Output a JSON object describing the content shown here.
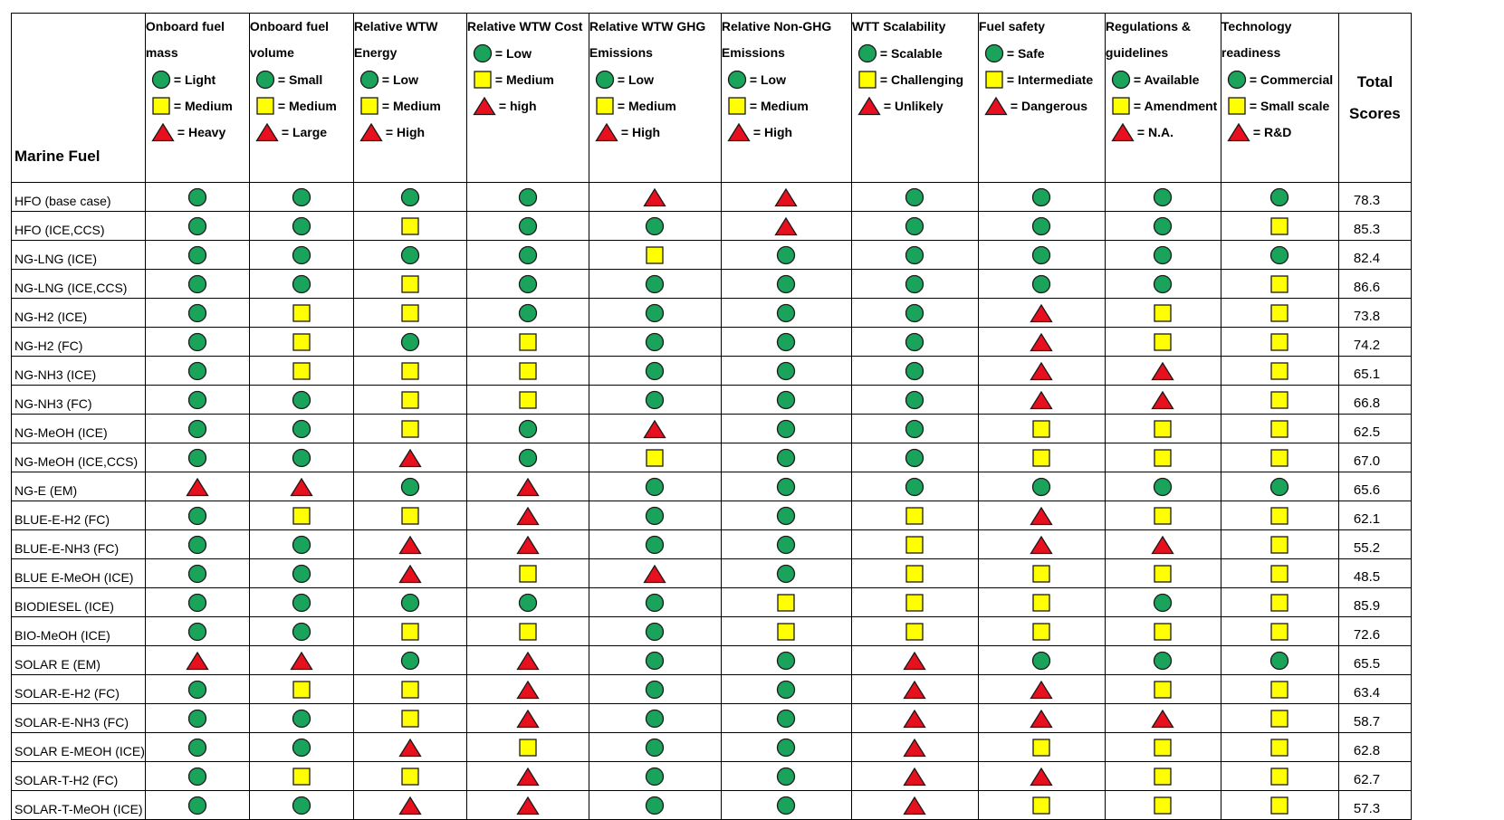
{
  "table": {
    "first_header": "Marine Fuel",
    "total_header": [
      "Total",
      "Scores"
    ],
    "colors": {
      "good": "#1aa35a",
      "medium": "#ffff00",
      "bad": "#e8101e",
      "outline": "#1a1a1a"
    },
    "criteria": [
      {
        "title": [
          "Onboard fuel",
          "mass"
        ],
        "legend": [
          "= Light",
          "= Medium",
          "= Heavy"
        ]
      },
      {
        "title": [
          "Onboard fuel",
          "volume"
        ],
        "legend": [
          "= Small",
          "= Medium",
          "= Large"
        ]
      },
      {
        "title": [
          "Relative WTW",
          "Energy"
        ],
        "legend": [
          "= Low",
          "= Medium",
          "= High"
        ]
      },
      {
        "title": [
          "",
          "Relative WTW Cost"
        ],
        "legend": [
          "= Low",
          "= Medium",
          "= high"
        ]
      },
      {
        "title": [
          "Relative WTW GHG",
          "Emissions"
        ],
        "legend": [
          "= Low",
          "= Medium",
          "= High"
        ]
      },
      {
        "title": [
          "Relative Non-GHG",
          "Emissions"
        ],
        "legend": [
          "= Low",
          "= Medium",
          "= High"
        ]
      },
      {
        "title": [
          "WTT Scalability",
          ""
        ],
        "legend": [
          "= Scalable",
          "= Challenging",
          "= Unlikely"
        ]
      },
      {
        "title": [
          "Fuel safety",
          ""
        ],
        "legend": [
          "= Safe",
          "= Intermediate",
          "= Dangerous"
        ]
      },
      {
        "title": [
          "Regulations &",
          "guidelines"
        ],
        "legend": [
          "= Available",
          "= Amendment",
          "= N.A."
        ]
      },
      {
        "title": [
          "Technology",
          "readiness"
        ],
        "legend": [
          "= Commercial",
          "= Small scale",
          "= R&D"
        ]
      }
    ],
    "rows": [
      {
        "fuel": "HFO (base case)",
        "ratings": [
          "circle",
          "circle",
          "circle",
          "circle",
          "triangle",
          "triangle",
          "circle",
          "circle",
          "circle",
          "circle"
        ],
        "score": "78.3"
      },
      {
        "fuel": "HFO (ICE,CCS)",
        "ratings": [
          "circle",
          "circle",
          "square",
          "circle",
          "circle",
          "triangle",
          "circle",
          "circle",
          "circle",
          "square"
        ],
        "score": "85.3"
      },
      {
        "fuel": "NG-LNG (ICE)",
        "ratings": [
          "circle",
          "circle",
          "circle",
          "circle",
          "square",
          "circle",
          "circle",
          "circle",
          "circle",
          "circle"
        ],
        "score": "82.4"
      },
      {
        "fuel": "NG-LNG (ICE,CCS)",
        "ratings": [
          "circle",
          "circle",
          "square",
          "circle",
          "circle",
          "circle",
          "circle",
          "circle",
          "circle",
          "square"
        ],
        "score": "86.6"
      },
      {
        "fuel": "NG-H2 (ICE)",
        "ratings": [
          "circle",
          "square",
          "square",
          "circle",
          "circle",
          "circle",
          "circle",
          "triangle",
          "square",
          "square"
        ],
        "score": "73.8"
      },
      {
        "fuel": "NG-H2 (FC)",
        "ratings": [
          "circle",
          "square",
          "circle",
          "square",
          "circle",
          "circle",
          "circle",
          "triangle",
          "square",
          "square"
        ],
        "score": "74.2"
      },
      {
        "fuel": "NG-NH3 (ICE)",
        "ratings": [
          "circle",
          "square",
          "square",
          "square",
          "circle",
          "circle",
          "circle",
          "triangle",
          "triangle",
          "square"
        ],
        "score": "65.1"
      },
      {
        "fuel": "NG-NH3 (FC)",
        "ratings": [
          "circle",
          "circle",
          "square",
          "square",
          "circle",
          "circle",
          "circle",
          "triangle",
          "triangle",
          "square"
        ],
        "score": "66.8"
      },
      {
        "fuel": "NG-MeOH (ICE)",
        "ratings": [
          "circle",
          "circle",
          "square",
          "circle",
          "triangle",
          "circle",
          "circle",
          "square",
          "square",
          "square"
        ],
        "score": "62.5"
      },
      {
        "fuel": "NG-MeOH (ICE,CCS)",
        "ratings": [
          "circle",
          "circle",
          "triangle",
          "circle",
          "square",
          "circle",
          "circle",
          "square",
          "square",
          "square"
        ],
        "score": "67.0"
      },
      {
        "fuel": "NG-E (EM)",
        "ratings": [
          "triangle",
          "triangle",
          "circle",
          "triangle",
          "circle",
          "circle",
          "circle",
          "circle",
          "circle",
          "circle"
        ],
        "score": "65.6"
      },
      {
        "fuel": "BLUE-E-H2 (FC)",
        "ratings": [
          "circle",
          "square",
          "square",
          "triangle",
          "circle",
          "circle",
          "square",
          "triangle",
          "square",
          "square"
        ],
        "score": "62.1"
      },
      {
        "fuel": "BLUE-E-NH3 (FC)",
        "ratings": [
          "circle",
          "circle",
          "triangle",
          "triangle",
          "circle",
          "circle",
          "square",
          "triangle",
          "triangle",
          "square"
        ],
        "score": "55.2"
      },
      {
        "fuel": "BLUE E-MeOH (ICE)",
        "ratings": [
          "circle",
          "circle",
          "triangle",
          "square",
          "triangle",
          "circle",
          "square",
          "square",
          "square",
          "square"
        ],
        "score": "48.5"
      },
      {
        "fuel": "BIODIESEL (ICE)",
        "ratings": [
          "circle",
          "circle",
          "circle",
          "circle",
          "circle",
          "square",
          "square",
          "square",
          "circle",
          "square"
        ],
        "score": "85.9"
      },
      {
        "fuel": "BIO-MeOH (ICE)",
        "ratings": [
          "circle",
          "circle",
          "square",
          "square",
          "circle",
          "square",
          "square",
          "square",
          "square",
          "square"
        ],
        "score": "72.6"
      },
      {
        "fuel": "SOLAR E (EM)",
        "ratings": [
          "triangle",
          "triangle",
          "circle",
          "triangle",
          "circle",
          "circle",
          "triangle",
          "circle",
          "circle",
          "circle"
        ],
        "score": "65.5"
      },
      {
        "fuel": "SOLAR-E-H2 (FC)",
        "ratings": [
          "circle",
          "square",
          "square",
          "triangle",
          "circle",
          "circle",
          "triangle",
          "triangle",
          "square",
          "square"
        ],
        "score": "63.4"
      },
      {
        "fuel": "SOLAR-E-NH3 (FC)",
        "ratings": [
          "circle",
          "circle",
          "square",
          "triangle",
          "circle",
          "circle",
          "triangle",
          "triangle",
          "triangle",
          "square"
        ],
        "score": "58.7"
      },
      {
        "fuel": "SOLAR E-MEOH (ICE)",
        "ratings": [
          "circle",
          "circle",
          "triangle",
          "square",
          "circle",
          "circle",
          "triangle",
          "square",
          "square",
          "square"
        ],
        "score": "62.8"
      },
      {
        "fuel": "SOLAR-T-H2 (FC)",
        "ratings": [
          "circle",
          "square",
          "square",
          "triangle",
          "circle",
          "circle",
          "triangle",
          "triangle",
          "square",
          "square"
        ],
        "score": "62.7"
      },
      {
        "fuel": "SOLAR-T-MeOH (ICE)",
        "ratings": [
          "circle",
          "circle",
          "triangle",
          "triangle",
          "circle",
          "circle",
          "triangle",
          "square",
          "square",
          "square"
        ],
        "score": "57.3"
      }
    ]
  }
}
